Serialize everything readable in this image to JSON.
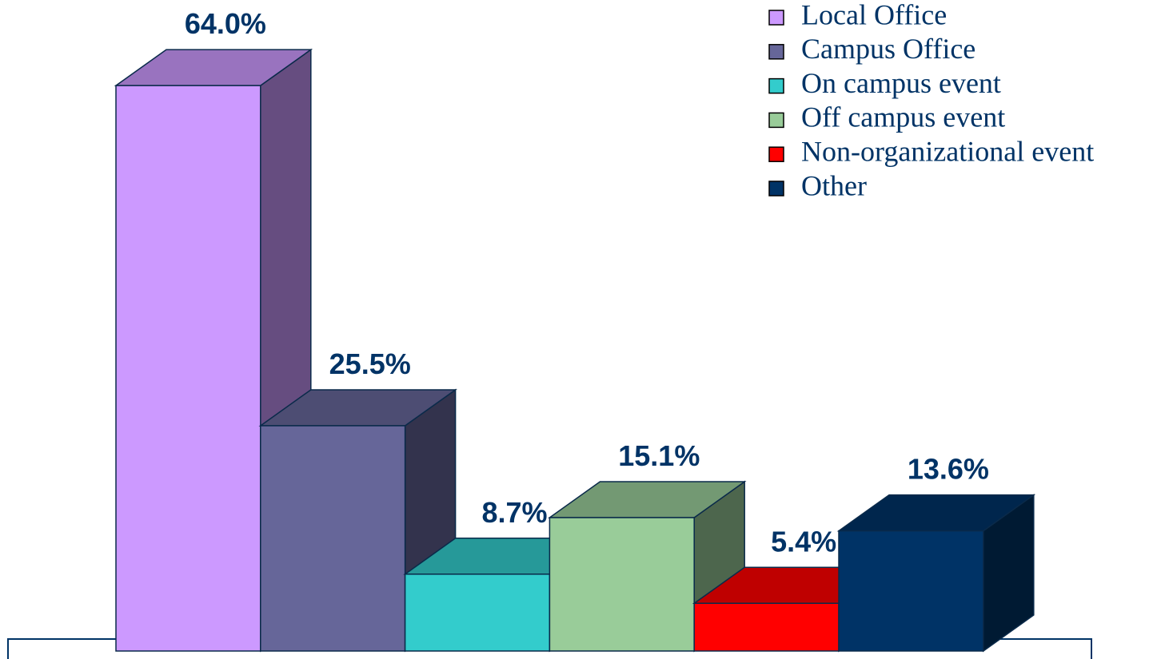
{
  "chart_data": {
    "type": "bar3d",
    "series": [
      {
        "name": "Local Office",
        "color": "#cc99ff",
        "values": [
          64.0
        ],
        "value_labels": [
          "64.0%"
        ]
      },
      {
        "name": "Campus Office",
        "color": "#666699",
        "values": [
          25.5
        ],
        "value_labels": [
          "25.5%"
        ]
      },
      {
        "name": "On campus event",
        "color": "#33cccc",
        "values": [
          8.7
        ],
        "value_labels": [
          "8.7%"
        ]
      },
      {
        "name": "Off campus event",
        "color": "#99cc99",
        "values": [
          15.1
        ],
        "value_labels": [
          "15.1%"
        ]
      },
      {
        "name": "Non-organizational event",
        "color": "#ff0000",
        "values": [
          5.4
        ],
        "value_labels": [
          "5.4%"
        ]
      },
      {
        "name": "Other",
        "color": "#003366",
        "values": [
          13.6
        ],
        "value_labels": [
          "13.6%"
        ]
      }
    ],
    "legend": "top-right"
  }
}
